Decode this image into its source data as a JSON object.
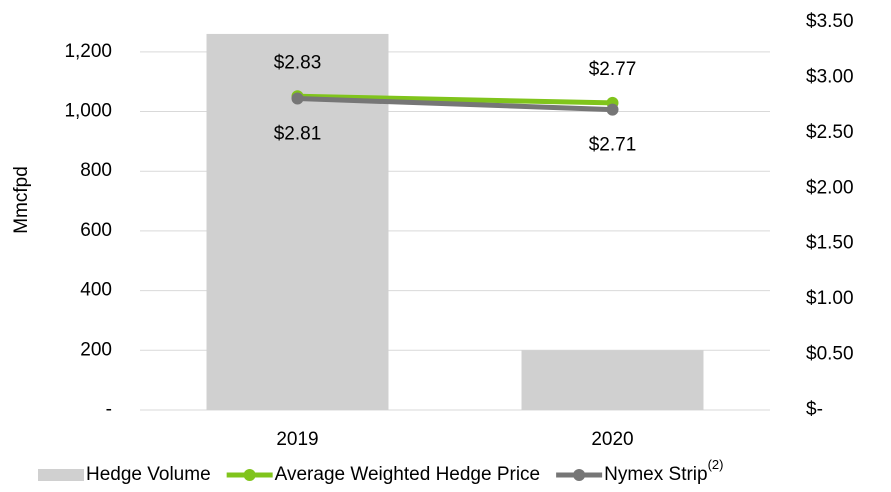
{
  "chart_data": {
    "type": "bar_line",
    "y_axis_label": "Mmcfpd",
    "categories": [
      "2019",
      "2020"
    ],
    "series": [
      {
        "name": "Hedge Volume",
        "type": "bar",
        "color": "#d0d0d0",
        "values": [
          1260,
          200
        ]
      },
      {
        "name": "Average Weighted Hedge Price",
        "type": "line",
        "axis": "y2",
        "color": "#80c41c",
        "values": [
          2.83,
          2.77
        ],
        "value_labels": [
          "$2.83",
          "$2.77"
        ],
        "label_position": "above"
      },
      {
        "name": "Nymex Strip",
        "name_superscript": "(2)",
        "type": "line",
        "axis": "y2",
        "color": "#767676",
        "values": [
          2.81,
          2.71
        ],
        "value_labels": [
          "$2.81",
          "$2.71"
        ],
        "label_position": "below"
      }
    ],
    "ylim": [
      0,
      1300
    ],
    "yticks": [
      {
        "value": 0,
        "label": "-"
      },
      200,
      400,
      600,
      800,
      {
        "value": 1000,
        "label": "1,000"
      },
      {
        "value": 1200,
        "label": "1,200"
      }
    ],
    "y2lim": [
      0,
      3.5
    ],
    "y2ticks": [
      {
        "value": 0,
        "label": "$-"
      },
      {
        "value": 0.5,
        "label": "$0.50"
      },
      {
        "value": 1,
        "label": "$1.00"
      },
      {
        "value": 1.5,
        "label": "$1.50"
      },
      {
        "value": 2,
        "label": "$2.00"
      },
      {
        "value": 2.5,
        "label": "$2.50"
      },
      {
        "value": 3,
        "label": "$3.00"
      },
      {
        "value": 3.5,
        "label": "$3.50"
      }
    ],
    "grid": true
  }
}
